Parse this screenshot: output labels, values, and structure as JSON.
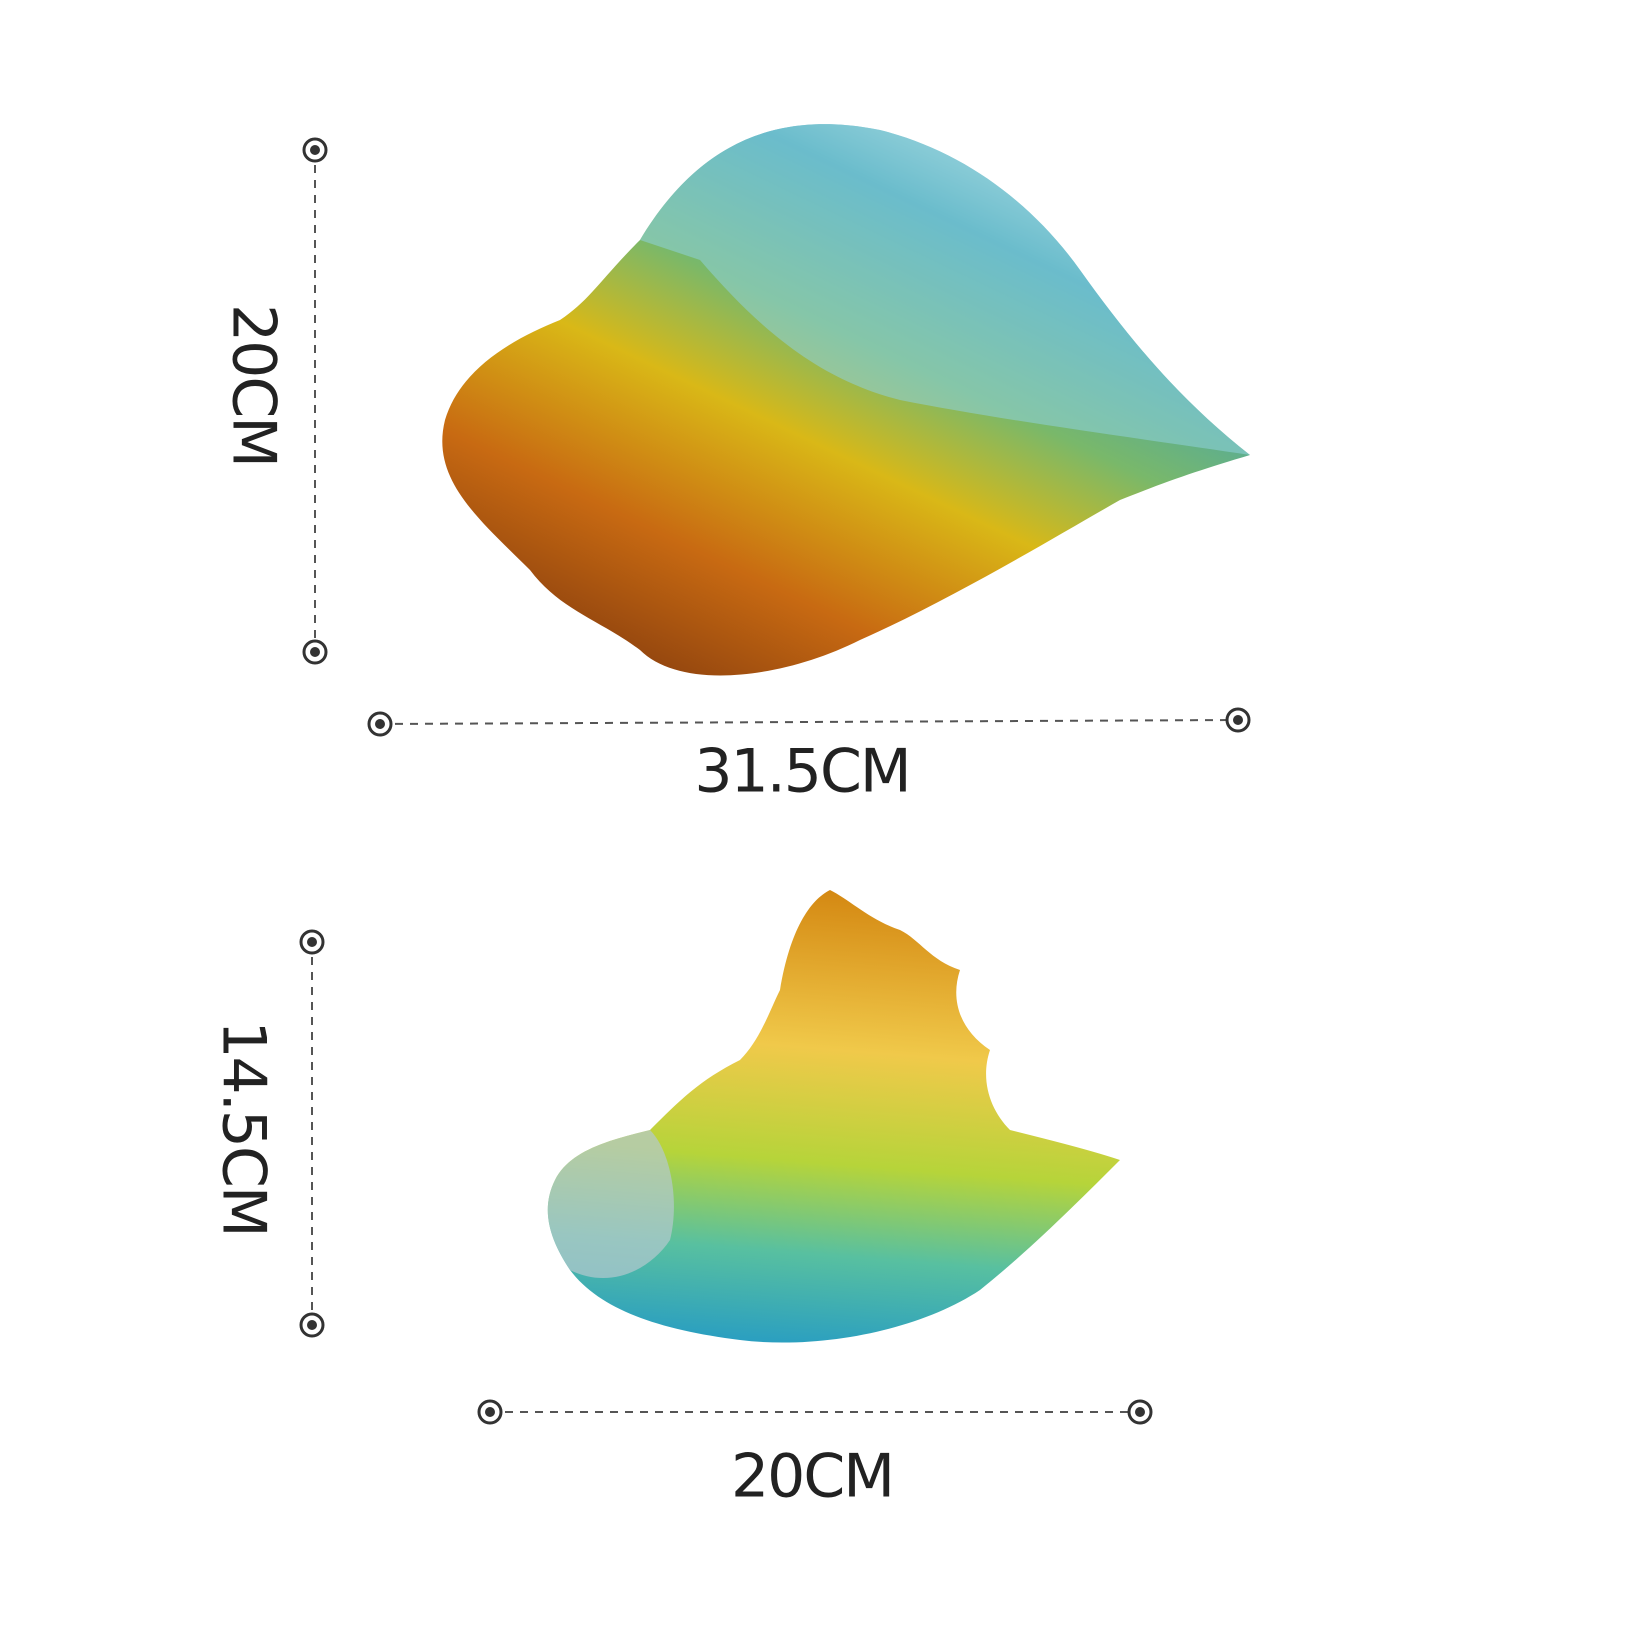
{
  "items": [
    {
      "height_label": "20CM",
      "width_label": "31.5CM"
    },
    {
      "height_label": "14.5CM",
      "width_label": "20CM"
    }
  ]
}
